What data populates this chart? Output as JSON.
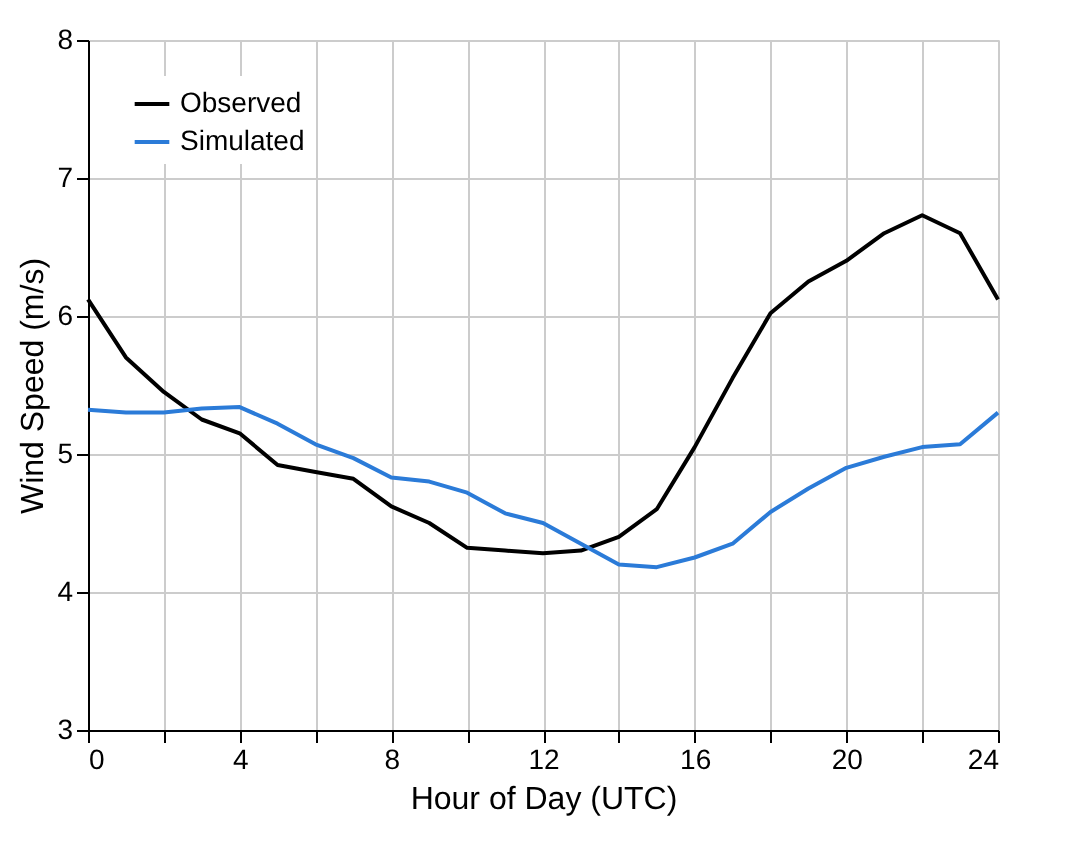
{
  "chart_data": {
    "type": "line",
    "xlabel": "Hour of Day (UTC)",
    "ylabel": "Wind Speed (m/s)",
    "x": [
      0,
      1,
      2,
      3,
      4,
      5,
      6,
      7,
      8,
      9,
      10,
      11,
      12,
      13,
      14,
      15,
      16,
      17,
      18,
      19,
      20,
      21,
      22,
      23,
      24
    ],
    "series": [
      {
        "name": "Observed",
        "color": "#000000",
        "values": [
          6.12,
          5.7,
          5.45,
          5.25,
          5.15,
          4.92,
          4.87,
          4.82,
          4.62,
          4.5,
          4.32,
          4.3,
          4.28,
          4.3,
          4.4,
          4.6,
          5.05,
          5.55,
          6.02,
          6.25,
          6.4,
          6.6,
          6.73,
          6.6,
          6.12
        ]
      },
      {
        "name": "Simulated",
        "color": "#2b7bd8",
        "values": [
          5.32,
          5.3,
          5.3,
          5.33,
          5.34,
          5.22,
          5.07,
          4.97,
          4.83,
          4.8,
          4.72,
          4.57,
          4.5,
          4.35,
          4.2,
          4.18,
          4.25,
          4.35,
          4.58,
          4.75,
          4.9,
          4.98,
          5.05,
          5.07,
          5.3
        ]
      }
    ],
    "xlim": [
      0,
      24
    ],
    "xticks": [
      0,
      {
        "value": 2,
        "label": null
      },
      4,
      {
        "value": 6,
        "label": null
      },
      8,
      {
        "value": 10,
        "label": null
      },
      12,
      {
        "value": 14,
        "label": null
      },
      16,
      {
        "value": 18,
        "label": null
      },
      20,
      {
        "value": 22,
        "label": null
      },
      24
    ],
    "ylim": [
      3,
      8
    ],
    "yticks": [
      3,
      4,
      5,
      6,
      7,
      8
    ],
    "grid": true,
    "legend": "top left",
    "marker": "none",
    "line_style": "solid"
  }
}
